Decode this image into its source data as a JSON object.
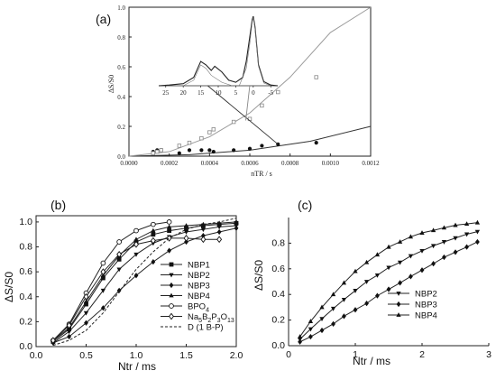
{
  "chart_data": [
    {
      "type": "scatter",
      "panel_label": "(a)",
      "ylabel": "ΔS/S0",
      "xlabel": "nTR / s",
      "xlim": [
        0,
        0.0012
      ],
      "ylim": [
        0,
        1.0
      ],
      "x_ticks": [
        "0.0000",
        "0.0002",
        "0.0004",
        "0.0006",
        "0.0008",
        "0.0010",
        "0.0012"
      ],
      "y_ticks": [
        "0.0",
        "0.2",
        "0.4",
        "0.6",
        "0.8",
        "1.0"
      ],
      "series": [
        {
          "marker": "filled-circle",
          "x": [
            0.00012,
            0.00014,
            0.00016,
            0.00025,
            0.0003,
            0.00036,
            0.0004,
            0.00042,
            0.00052,
            0.0006,
            0.00066,
            0.00074,
            0.00093
          ],
          "y": [
            0.03,
            0.04,
            0.04,
            0.02,
            0.04,
            0.04,
            0.04,
            0.03,
            0.04,
            0.05,
            0.07,
            0.08,
            0.09
          ]
        },
        {
          "marker": "open-square",
          "x": [
            0.00012,
            0.00014,
            0.00016,
            0.00025,
            0.0003,
            0.00036,
            0.0004,
            0.00042,
            0.00052,
            0.0006,
            0.00066,
            0.00074,
            0.00093
          ],
          "y": [
            0.02,
            0.03,
            0.04,
            0.07,
            0.09,
            0.12,
            0.16,
            0.18,
            0.23,
            0.25,
            0.34,
            0.43,
            0.53
          ]
        }
      ],
      "fits": [
        {
          "x": [
            0,
            0.0003,
            0.0006,
            0.0009,
            0.0012
          ],
          "y": [
            0,
            0.01,
            0.04,
            0.1,
            0.2
          ]
        },
        {
          "x": [
            0,
            0.0002,
            0.0004,
            0.0006,
            0.0008,
            0.001,
            0.0012
          ],
          "y": [
            0,
            0.03,
            0.13,
            0.29,
            0.53,
            0.83,
            1.1
          ]
        }
      ],
      "inset": {
        "ticks": [
          "25",
          "20",
          "15",
          "10",
          "5",
          "0",
          "-5"
        ],
        "x": [
          27,
          24,
          20,
          17,
          15,
          13.5,
          12,
          11,
          9,
          7,
          5,
          3,
          2,
          1,
          0.3,
          0,
          -0.5,
          -1.5,
          -3,
          -5,
          -7
        ],
        "y": [
          0,
          0.01,
          0.03,
          0.12,
          0.35,
          0.3,
          0.22,
          0.28,
          0.2,
          0.08,
          0.05,
          0.12,
          0.35,
          0.7,
          0.95,
          1.0,
          0.85,
          0.3,
          0.06,
          0.01,
          0
        ]
      }
    },
    {
      "type": "line",
      "panel_label": "(b)",
      "ylabel": "ΔS/S0",
      "xlabel": "Ntr / ms",
      "xlim": [
        0,
        2.0
      ],
      "ylim": [
        0,
        1.05
      ],
      "x_ticks": [
        "0.0",
        "0.5",
        "1.0",
        "1.5",
        "2.0"
      ],
      "y_ticks": [
        "0.0",
        "0.2",
        "0.4",
        "0.6",
        "0.8",
        "1.0"
      ],
      "legend": [
        "NBP1",
        "NBP2",
        "NBP3",
        "NBP4",
        "BPO4",
        "Na5B2P3O13",
        "D (1 B-P)"
      ],
      "series": [
        {
          "name": "NBP1",
          "marker": "square",
          "x": [
            0.17,
            0.33,
            0.5,
            0.67,
            0.83,
            1.0,
            1.17,
            1.33,
            1.5,
            1.67,
            1.83,
            2.0
          ],
          "y": [
            0.04,
            0.14,
            0.34,
            0.55,
            0.7,
            0.84,
            0.9,
            0.93,
            0.95,
            0.97,
            0.98,
            0.99
          ]
        },
        {
          "name": "NBP2",
          "marker": "triangle-down",
          "x": [
            0.17,
            0.33,
            0.5,
            0.67,
            0.83,
            1.0,
            1.17,
            1.33,
            1.5,
            1.67,
            1.83,
            2.0
          ],
          "y": [
            0.03,
            0.12,
            0.27,
            0.45,
            0.62,
            0.74,
            0.83,
            0.88,
            0.92,
            0.94,
            0.96,
            0.97
          ]
        },
        {
          "name": "NBP3",
          "marker": "diamond",
          "x": [
            0.17,
            0.33,
            0.5,
            0.67,
            0.83,
            1.0,
            1.17,
            1.33,
            1.5,
            1.67,
            1.83,
            2.0
          ],
          "y": [
            0.03,
            0.08,
            0.19,
            0.31,
            0.45,
            0.57,
            0.68,
            0.77,
            0.84,
            0.89,
            0.92,
            0.95
          ]
        },
        {
          "name": "NBP4",
          "marker": "triangle-up",
          "x": [
            0.17,
            0.33,
            0.5,
            0.67,
            0.83,
            1.0,
            1.17,
            1.33,
            1.5,
            1.67,
            1.83,
            2.0
          ],
          "y": [
            0.05,
            0.15,
            0.36,
            0.57,
            0.73,
            0.86,
            0.93,
            0.96,
            0.97,
            0.98,
            0.99,
            1.0
          ]
        },
        {
          "name": "BPO4",
          "marker": "open-circle",
          "x": [
            0.17,
            0.33,
            0.5,
            0.67,
            0.83,
            1.0,
            1.17,
            1.33
          ],
          "y": [
            0.05,
            0.18,
            0.43,
            0.67,
            0.84,
            0.93,
            0.98,
            1.0
          ]
        },
        {
          "name": "Na5B2P3O13",
          "marker": "open-diamond",
          "x": [
            0.17,
            0.33,
            0.5,
            0.67,
            0.83,
            1.0,
            1.17,
            1.33,
            1.5,
            1.67,
            1.83
          ],
          "y": [
            0.05,
            0.17,
            0.4,
            0.6,
            0.74,
            0.82,
            0.85,
            0.87,
            0.87,
            0.86,
            0.86
          ]
        },
        {
          "name": "D (1 B-P)",
          "marker": "none",
          "dashed": true,
          "x": [
            0.17,
            0.33,
            0.5,
            0.67,
            0.83,
            1.0,
            1.17,
            1.33,
            1.5,
            1.67,
            1.83,
            2.0
          ],
          "y": [
            0.01,
            0.05,
            0.13,
            0.27,
            0.44,
            0.62,
            0.76,
            0.87,
            0.94,
            0.98,
            1.0,
            1.03
          ]
        }
      ]
    },
    {
      "type": "line",
      "panel_label": "(c)",
      "ylabel": "ΔS/S0",
      "xlabel": "Ntr / ms",
      "xlim": [
        0,
        3
      ],
      "ylim": [
        0,
        1.0
      ],
      "x_ticks": [
        "0",
        "1",
        "2",
        "3"
      ],
      "y_ticks": [
        "0.0",
        "0.2",
        "0.4",
        "0.6",
        "0.8"
      ],
      "legend": [
        "NBP2",
        "NBP3",
        "NBP4"
      ],
      "series": [
        {
          "name": "NBP2",
          "marker": "triangle-down",
          "x": [
            0.17,
            0.33,
            0.5,
            0.67,
            0.83,
            1.0,
            1.17,
            1.33,
            1.5,
            1.67,
            1.83,
            2.0,
            2.17,
            2.33,
            2.5,
            2.67,
            2.83
          ],
          "y": [
            0.05,
            0.13,
            0.21,
            0.29,
            0.36,
            0.43,
            0.5,
            0.55,
            0.61,
            0.65,
            0.7,
            0.74,
            0.78,
            0.81,
            0.84,
            0.87,
            0.89
          ]
        },
        {
          "name": "NBP3",
          "marker": "diamond",
          "x": [
            0.17,
            0.33,
            0.5,
            0.67,
            0.83,
            1.0,
            1.17,
            1.33,
            1.5,
            1.67,
            1.83,
            2.0,
            2.17,
            2.33,
            2.5,
            2.67,
            2.83
          ],
          "y": [
            0.03,
            0.07,
            0.12,
            0.17,
            0.23,
            0.28,
            0.33,
            0.39,
            0.44,
            0.49,
            0.54,
            0.59,
            0.64,
            0.69,
            0.73,
            0.77,
            0.81
          ]
        },
        {
          "name": "NBP4",
          "marker": "triangle-up",
          "x": [
            0.17,
            0.33,
            0.5,
            0.67,
            0.83,
            1.0,
            1.17,
            1.33,
            1.5,
            1.67,
            1.83,
            2.0,
            2.17,
            2.33,
            2.5,
            2.67,
            2.83
          ],
          "y": [
            0.07,
            0.19,
            0.3,
            0.4,
            0.49,
            0.58,
            0.65,
            0.71,
            0.77,
            0.81,
            0.85,
            0.88,
            0.9,
            0.92,
            0.94,
            0.95,
            0.96
          ]
        }
      ]
    }
  ]
}
